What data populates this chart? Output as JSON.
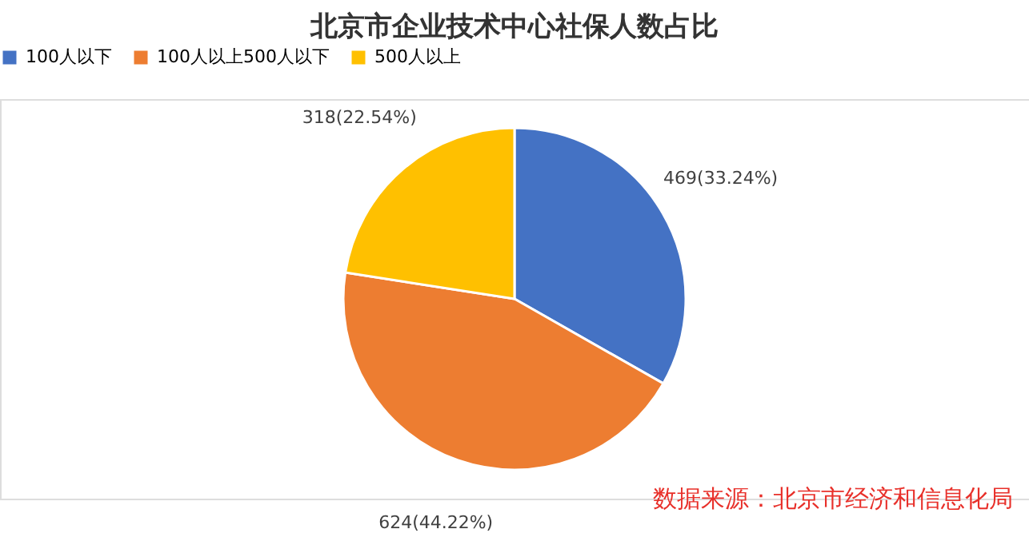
{
  "chart_data": {
    "type": "pie",
    "title": "北京市企业技术中心社保人数占比",
    "categories": [
      "100人以下",
      "100人以上500人以下",
      "500人以上"
    ],
    "values": [
      469,
      624,
      318
    ],
    "colors": [
      "#4472c4",
      "#ed7d31",
      "#ffc000"
    ],
    "value_labels": [
      "469(33.24%)",
      "624(44.22%)",
      "318(22.54%)"
    ],
    "legend": "top",
    "annotations": [
      "数据来源：北京市经济和信息化局"
    ]
  }
}
